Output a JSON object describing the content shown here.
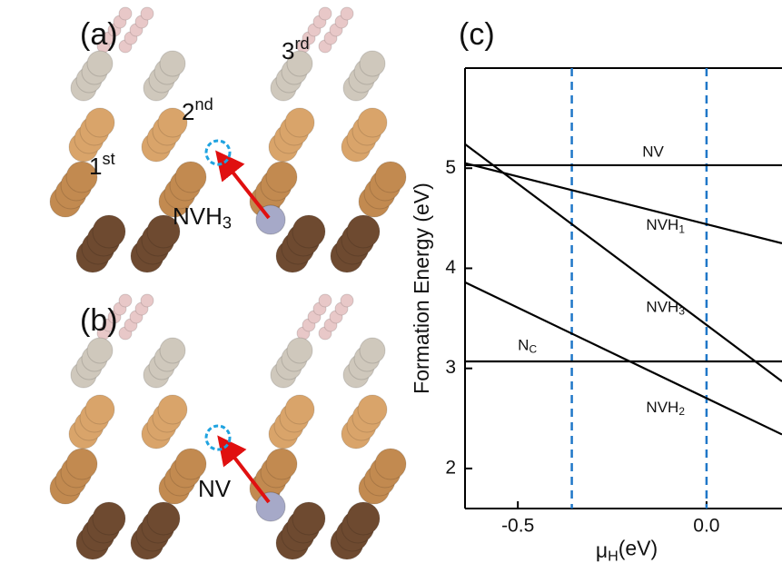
{
  "structures": {
    "panel_a": {
      "label": "(a)",
      "layers": [
        {
          "text": "1",
          "sup": "st"
        },
        {
          "text": "2",
          "sup": "nd"
        },
        {
          "text": "3",
          "sup": "rd"
        }
      ],
      "defect": {
        "text": "NVH",
        "sub": "3"
      }
    },
    "panel_b": {
      "label": "(b)",
      "defect": {
        "text": "NV"
      }
    }
  },
  "chart_data": {
    "type": "line",
    "panel_label": "(c)",
    "x_label": {
      "text": "μ",
      "sub": "H",
      "rest": "(eV)"
    },
    "y_label": "Formation Energy (eV)",
    "xlim": [
      -0.64,
      0.2
    ],
    "ylim": [
      1.6,
      6.0
    ],
    "xticks": [
      {
        "value": -0.5,
        "label": "-0.5"
      },
      {
        "value": 0,
        "label": "0.0"
      }
    ],
    "yticks": [
      2,
      3,
      4,
      5
    ],
    "vlines": {
      "color": "#1f77c8",
      "x": [
        -0.357,
        0
      ]
    },
    "series": [
      {
        "label": {
          "text": "NV"
        },
        "color": "#000000",
        "x": [
          -0.64,
          0.2
        ],
        "values": [
          5.03,
          5.03
        ]
      },
      {
        "label": {
          "text": "NVH",
          "sub": "1"
        },
        "color": "#000000",
        "x": [
          -0.64,
          0.2
        ],
        "values": [
          5.05,
          4.25
        ]
      },
      {
        "label": {
          "text": "NVH",
          "sub": "3"
        },
        "color": "#000000",
        "x": [
          -0.64,
          0.2
        ],
        "values": [
          5.24,
          2.87
        ]
      },
      {
        "label": {
          "text": "N",
          "sub": "C"
        },
        "color": "#000000",
        "x": [
          -0.64,
          0.2
        ],
        "values": [
          3.07,
          3.07
        ]
      },
      {
        "label": {
          "text": "NVH",
          "sub": "2"
        },
        "color": "#000000",
        "x": [
          -0.64,
          0.2
        ],
        "values": [
          3.86,
          2.34
        ]
      }
    ]
  }
}
